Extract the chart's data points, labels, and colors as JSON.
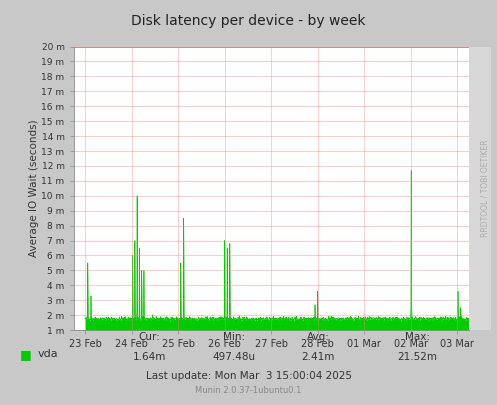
{
  "title": "Disk latency per device - by week",
  "ylabel": "Average IO Wait (seconds)",
  "line_color": "#00cc00",
  "bg_color": "#ffffff",
  "outer_bg_color": "#c8c8c8",
  "right_strip_color": "#d8d8d8",
  "grid_color": "#ff8080",
  "border_color": "#999999",
  "text_color": "#333333",
  "watermark": "RRDTOOL / TOBI OETIKER",
  "munin_text": "Munin 2.0.37-1ubuntu0.1",
  "legend_label": "vda",
  "legend_color": "#00cc00",
  "ytick_labels": [
    "1 m",
    "2 m",
    "3 m",
    "4 m",
    "5 m",
    "6 m",
    "7 m",
    "8 m",
    "9 m",
    "10 m",
    "11 m",
    "12 m",
    "13 m",
    "14 m",
    "15 m",
    "16 m",
    "17 m",
    "18 m",
    "19 m",
    "20 m"
  ],
  "ytick_values": [
    1,
    2,
    3,
    4,
    5,
    6,
    7,
    8,
    9,
    10,
    11,
    12,
    13,
    14,
    15,
    16,
    17,
    18,
    19,
    20
  ],
  "ymin": 1,
  "ymax": 20,
  "xtick_labels": [
    "23 Feb",
    "24 Feb",
    "25 Feb",
    "26 Feb",
    "27 Feb",
    "28 Feb",
    "01 Mar",
    "02 Mar",
    "03 Mar"
  ],
  "xtick_positions": [
    0,
    144,
    288,
    432,
    576,
    720,
    864,
    1008,
    1152
  ],
  "xmin": -36,
  "xmax": 1188,
  "n_points": 1296
}
